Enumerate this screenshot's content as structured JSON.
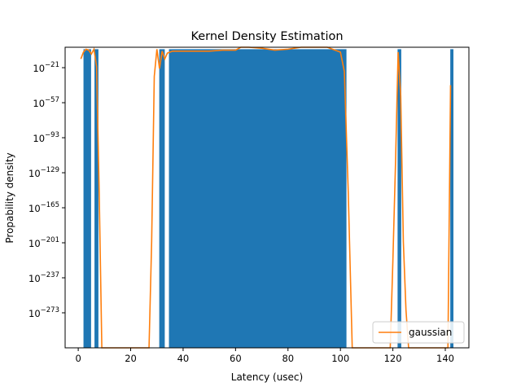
{
  "chart_data": {
    "type": "bar+line",
    "title": "Kernel Density Estimation",
    "xlabel": "Latency (usec)",
    "ylabel": "Propability density",
    "yscale": "log",
    "xlim": [
      -5,
      149
    ],
    "ylim_exp": [
      -309,
      0
    ],
    "x_ticks": [
      0,
      20,
      40,
      60,
      80,
      100,
      120,
      140
    ],
    "y_tick_exponents": [
      -21,
      -57,
      -93,
      -129,
      -165,
      -201,
      -237,
      -273
    ],
    "y_tick_base": "10",
    "legend": {
      "entries": [
        "gaussian"
      ],
      "position": "lower-right"
    },
    "colors": {
      "bars": "#1f77b4",
      "line": "#ff7f0e"
    },
    "histogram": {
      "top_exp": -2,
      "segments": [
        {
          "x_start": 2.0,
          "x_end": 4.9
        },
        {
          "x_start": 6.2,
          "x_end": 7.7
        },
        {
          "x_start": 30.9,
          "x_end": 33.0
        },
        {
          "x_start": 34.6,
          "x_end": 102.3
        },
        {
          "x_start": 121.8,
          "x_end": 123.2
        },
        {
          "x_start": 141.9,
          "x_end": 143.1
        }
      ]
    },
    "series": [
      {
        "name": "gaussian",
        "x": [
          1,
          2,
          3,
          4,
          5,
          6,
          7,
          8,
          9,
          27,
          28,
          29,
          30,
          31,
          32,
          33,
          34,
          36,
          40,
          45,
          50,
          55,
          60,
          62,
          65,
          70,
          75,
          80,
          85,
          90,
          95,
          98,
          100,
          101.5,
          103,
          104.5,
          106,
          119,
          120,
          121,
          122,
          123,
          124,
          125,
          126,
          141,
          142
        ],
        "y_exp": [
          -12,
          -5,
          -2,
          -3,
          -7,
          -2,
          -20,
          -150,
          -309,
          -309,
          -200,
          -30,
          -2,
          -22,
          -4,
          -12,
          -6,
          -4,
          -4,
          -4,
          -4,
          -3,
          -3,
          0,
          0,
          -1,
          -3,
          -2,
          0,
          0,
          0,
          -3,
          -5,
          -25,
          -150,
          -309,
          -309,
          -309,
          -220,
          -120,
          -5,
          -50,
          -200,
          -270,
          -309,
          -309,
          -39
        ]
      }
    ]
  }
}
